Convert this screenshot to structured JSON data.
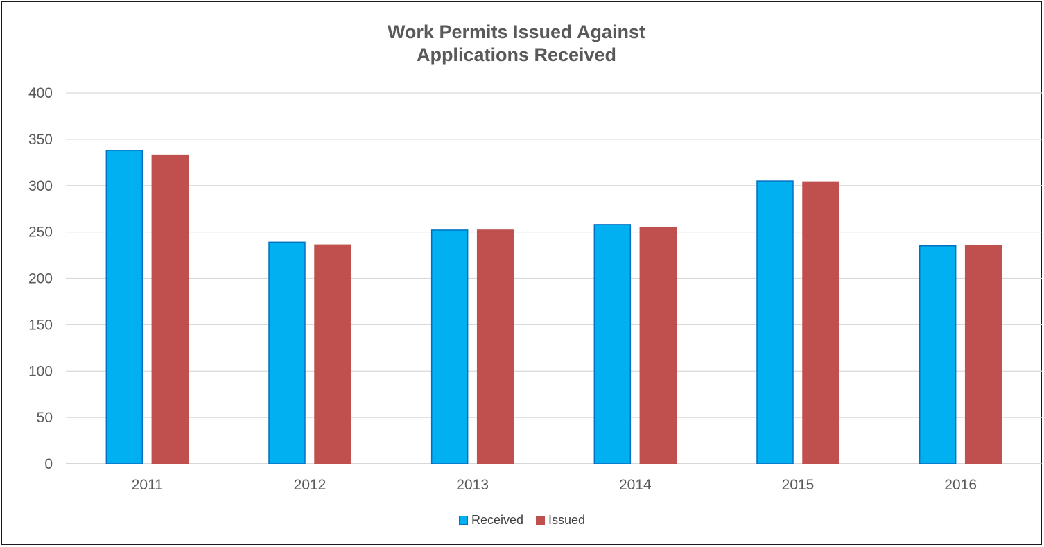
{
  "chart_data": {
    "type": "bar",
    "title_lines": [
      "Work Permits Issued Against",
      "Applications Received"
    ],
    "categories": [
      "2011",
      "2012",
      "2013",
      "2014",
      "2015",
      "2016"
    ],
    "series": [
      {
        "name": "Received",
        "values": [
          338,
          239,
          252,
          258,
          305,
          235
        ],
        "color": "#00b0f0",
        "border": "#0070c0"
      },
      {
        "name": "Issued",
        "values": [
          333,
          236,
          252,
          255,
          304,
          235
        ],
        "color": "#c0504d",
        "border": "#c0504d"
      }
    ],
    "ylim": [
      0,
      400
    ],
    "yticks": [
      0,
      50,
      100,
      150,
      200,
      250,
      300,
      350,
      400
    ],
    "xlabel": "",
    "ylabel": "",
    "grid": true,
    "gridline_color": "#d9d9d9",
    "legend_position": "bottom"
  }
}
